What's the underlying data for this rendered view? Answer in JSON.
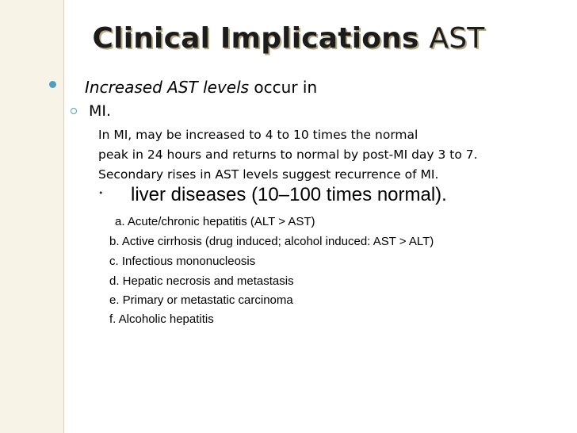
{
  "title": {
    "main": "Clinical Implications",
    "suffix": "AST"
  },
  "content": {
    "level1": {
      "italic": "Increased AST levels",
      "rest": " occur in"
    },
    "level2": "MI.",
    "paragraph": [
      "In MI, may be increased to 4 to 10 times the normal",
      "peak in 24 hours and returns to normal by post-MI day 3 to 7.",
      "Secondary rises in AST levels suggest recurrence of MI."
    ],
    "level4_bullet": "•",
    "level4": "liver diseases (10–100 times normal).",
    "list": [
      "a.   Acute/chronic hepatitis (ALT > AST)",
      "b.   Active cirrhosis (drug induced; alcohol induced: AST > ALT)",
      "c.   Infectious mononucleosis",
      "d.   Hepatic necrosis and metastasis",
      "e.   Primary or metastatic carcinoma",
      "f.  Alcoholic hepatitis"
    ]
  },
  "colors": {
    "band": "#f7f3e6",
    "bullet": "#4ea0c0",
    "title_shadow": "#b7ab86"
  }
}
